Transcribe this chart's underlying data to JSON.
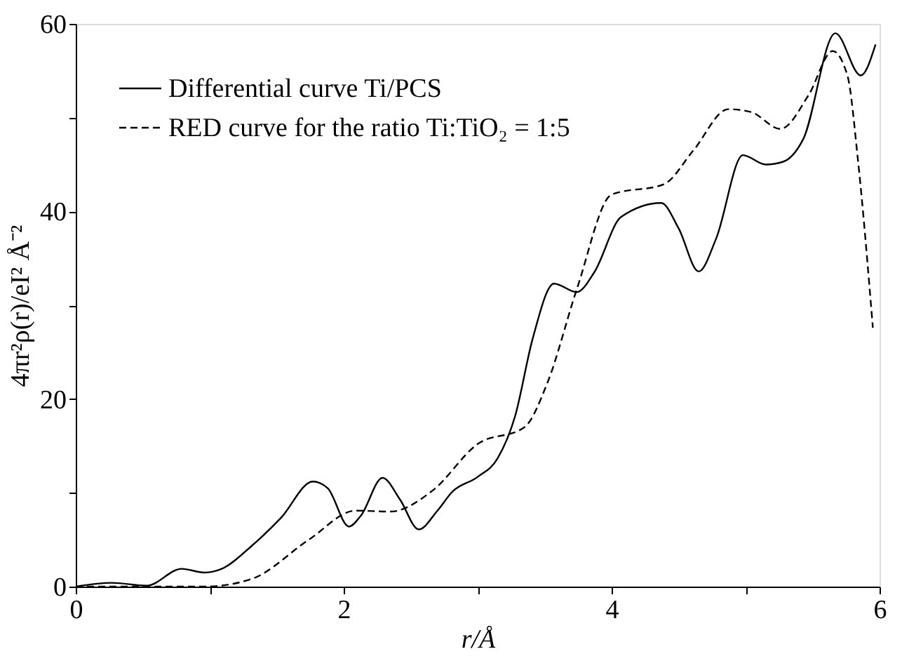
{
  "chart_data": {
    "type": "line",
    "xlabel": "r/Å",
    "ylabel": "4πr²ρ(r)/eI² Å⁻²",
    "xlim": [
      0,
      6
    ],
    "ylim": [
      0,
      60
    ],
    "xticks": [
      0,
      {
        "value": 1,
        "label": null
      },
      2,
      {
        "value": 3,
        "label": null
      },
      4,
      {
        "value": 5,
        "label": null
      },
      6
    ],
    "yticks": [
      0,
      {
        "value": 10,
        "label": null
      },
      20,
      {
        "value": 30,
        "label": null
      },
      40,
      {
        "value": 50,
        "label": null
      },
      60
    ],
    "grid": false,
    "legend": "top left",
    "marker": "none",
    "series": [
      {
        "name": "Differential curve Ti/PCS",
        "color": "#000000",
        "line_style": "solid",
        "x": [
          0,
          0.27,
          0.53,
          0.79,
          0.96,
          1.09,
          1.31,
          1.53,
          1.77,
          1.88,
          2.04,
          2.13,
          2.29,
          2.42,
          2.56,
          2.7,
          2.81,
          3.0,
          3.15,
          3.28,
          3.41,
          3.57,
          3.74,
          3.87,
          4.07,
          4.37,
          4.5,
          4.65,
          4.78,
          4.98,
          5.15,
          5.28,
          5.43,
          5.67,
          5.86,
          5.97
        ],
        "values": [
          0.0,
          0.4,
          0.1,
          1.9,
          1.5,
          1.9,
          4.3,
          7.3,
          11.2,
          10.5,
          6.4,
          7.6,
          11.6,
          9.3,
          6.1,
          8.1,
          10.1,
          11.7,
          13.7,
          18.2,
          26.4,
          32.3,
          31.4,
          33.5,
          39.4,
          40.9,
          38.2,
          33.6,
          37.1,
          46.0,
          45.0,
          45.3,
          47.7,
          59.0,
          54.5,
          57.8
        ]
      },
      {
        "name": "RED curve for the ratio Ti:TiO₂ = 1:5",
        "color": "#000000",
        "line_style": "dashed",
        "x": [
          0,
          0.96,
          1.31,
          1.74,
          2.09,
          2.35,
          2.66,
          3.0,
          3.35,
          3.52,
          3.74,
          4.0,
          4.39,
          4.61,
          4.87,
          5.04,
          5.26,
          5.47,
          5.65,
          5.76,
          5.84,
          5.95
        ],
        "values": [
          0,
          0,
          0.8,
          5.0,
          8.1,
          8.0,
          10.2,
          15.2,
          17.0,
          21.7,
          31.7,
          41.8,
          42.9,
          46.5,
          50.9,
          50.6,
          48.8,
          52.4,
          57.1,
          54.5,
          45.3,
          27.6
        ]
      }
    ]
  }
}
